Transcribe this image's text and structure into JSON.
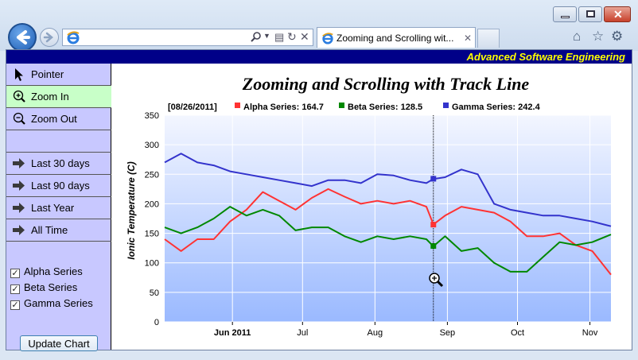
{
  "browser": {
    "tab_title": "Zooming and Scrolling wit...",
    "address_value": "",
    "icons": [
      "back-arrow-icon",
      "forward-arrow-icon",
      "ie-logo-icon",
      "search-icon",
      "refresh-icon",
      "stop-icon",
      "close-tab-icon",
      "home-icon",
      "favorites-star-icon",
      "gear-icon",
      "minimize-icon",
      "maximize-icon",
      "close-window-icon"
    ]
  },
  "banner": {
    "text": "Advanced Software Engineering"
  },
  "sidebar": {
    "buttons": [
      {
        "label": "Pointer",
        "icon": "pointer-arrow-icon"
      },
      {
        "label": "Zoom In",
        "icon": "zoom-in-icon",
        "active": true
      },
      {
        "label": "Zoom Out",
        "icon": "zoom-out-icon"
      },
      {
        "label": "Last 30 days",
        "icon": "right-arrow-icon"
      },
      {
        "label": "Last 90 days",
        "icon": "right-arrow-icon"
      },
      {
        "label": "Last Year",
        "icon": "right-arrow-icon"
      },
      {
        "label": "All Time",
        "icon": "right-arrow-icon"
      }
    ],
    "checkboxes": [
      {
        "label": "Alpha Series",
        "checked": true
      },
      {
        "label": "Beta Series",
        "checked": true
      },
      {
        "label": "Gamma Series",
        "checked": true
      }
    ],
    "update_label": "Update Chart"
  },
  "chart_data": {
    "type": "line",
    "title": "Zooming and Scrolling with Track Line",
    "ylabel": "Ionic Temperature (C)",
    "xlabel": "",
    "ylim": [
      0,
      350
    ],
    "yticks": [
      0,
      50,
      100,
      150,
      200,
      250,
      300,
      350
    ],
    "xlim": [
      "2011-05-03",
      "2011-11-10"
    ],
    "xticks": [
      {
        "date": "2011-06-01",
        "label": "Jun 2011",
        "bold": true
      },
      {
        "date": "2011-07-01",
        "label": "Jul"
      },
      {
        "date": "2011-08-01",
        "label": "Aug"
      },
      {
        "date": "2011-09-01",
        "label": "Sep"
      },
      {
        "date": "2011-10-01",
        "label": "Oct"
      },
      {
        "date": "2011-11-01",
        "label": "Nov"
      }
    ],
    "grid": true,
    "track_line": {
      "date": "2011-08-26",
      "date_label": "[08/26/2011]",
      "legend": [
        {
          "label": "Alpha Series: 164.7",
          "color": "#ff3333",
          "value": 164.7
        },
        {
          "label": "Beta Series: 128.5",
          "color": "#008800",
          "value": 128.5
        },
        {
          "label": "Gamma Series: 242.4",
          "color": "#3333cc",
          "value": 242.4
        }
      ]
    },
    "series": [
      {
        "name": "Alpha Series",
        "color": "#ff3333",
        "x": [
          "2011-05-03",
          "2011-05-10",
          "2011-05-17",
          "2011-05-24",
          "2011-05-31",
          "2011-06-07",
          "2011-06-14",
          "2011-06-21",
          "2011-06-28",
          "2011-07-05",
          "2011-07-12",
          "2011-07-19",
          "2011-07-26",
          "2011-08-02",
          "2011-08-09",
          "2011-08-16",
          "2011-08-23",
          "2011-08-26",
          "2011-08-31",
          "2011-09-07",
          "2011-09-14",
          "2011-09-21",
          "2011-09-28",
          "2011-10-05",
          "2011-10-12",
          "2011-10-19",
          "2011-10-26",
          "2011-11-02",
          "2011-11-10"
        ],
        "y": [
          140,
          120,
          140,
          140,
          170,
          190,
          220,
          205,
          190,
          210,
          225,
          212,
          200,
          205,
          200,
          205,
          195,
          165,
          180,
          195,
          190,
          185,
          170,
          145,
          145,
          150,
          130,
          120,
          80
        ]
      },
      {
        "name": "Beta Series",
        "color": "#008800",
        "x": [
          "2011-05-03",
          "2011-05-10",
          "2011-05-17",
          "2011-05-24",
          "2011-05-31",
          "2011-06-07",
          "2011-06-14",
          "2011-06-21",
          "2011-06-28",
          "2011-07-05",
          "2011-07-12",
          "2011-07-19",
          "2011-07-26",
          "2011-08-02",
          "2011-08-09",
          "2011-08-16",
          "2011-08-23",
          "2011-08-26",
          "2011-08-31",
          "2011-09-07",
          "2011-09-14",
          "2011-09-21",
          "2011-09-28",
          "2011-10-05",
          "2011-10-12",
          "2011-10-19",
          "2011-10-26",
          "2011-11-02",
          "2011-11-10"
        ],
        "y": [
          160,
          150,
          160,
          175,
          195,
          180,
          190,
          180,
          155,
          160,
          160,
          145,
          135,
          145,
          140,
          145,
          140,
          128,
          145,
          120,
          125,
          100,
          85,
          85,
          110,
          135,
          130,
          135,
          148
        ]
      },
      {
        "name": "Gamma Series",
        "color": "#3333cc",
        "x": [
          "2011-05-03",
          "2011-05-10",
          "2011-05-17",
          "2011-05-24",
          "2011-05-31",
          "2011-06-07",
          "2011-06-14",
          "2011-06-21",
          "2011-06-28",
          "2011-07-05",
          "2011-07-12",
          "2011-07-19",
          "2011-07-26",
          "2011-08-02",
          "2011-08-09",
          "2011-08-16",
          "2011-08-23",
          "2011-08-26",
          "2011-08-31",
          "2011-09-07",
          "2011-09-14",
          "2011-09-21",
          "2011-09-28",
          "2011-10-05",
          "2011-10-12",
          "2011-10-19",
          "2011-10-26",
          "2011-11-02",
          "2011-11-10"
        ],
        "y": [
          270,
          285,
          270,
          265,
          255,
          250,
          245,
          240,
          235,
          230,
          240,
          240,
          235,
          250,
          248,
          240,
          235,
          242,
          245,
          258,
          250,
          200,
          190,
          185,
          180,
          180,
          175,
          170,
          162
        ]
      }
    ]
  }
}
